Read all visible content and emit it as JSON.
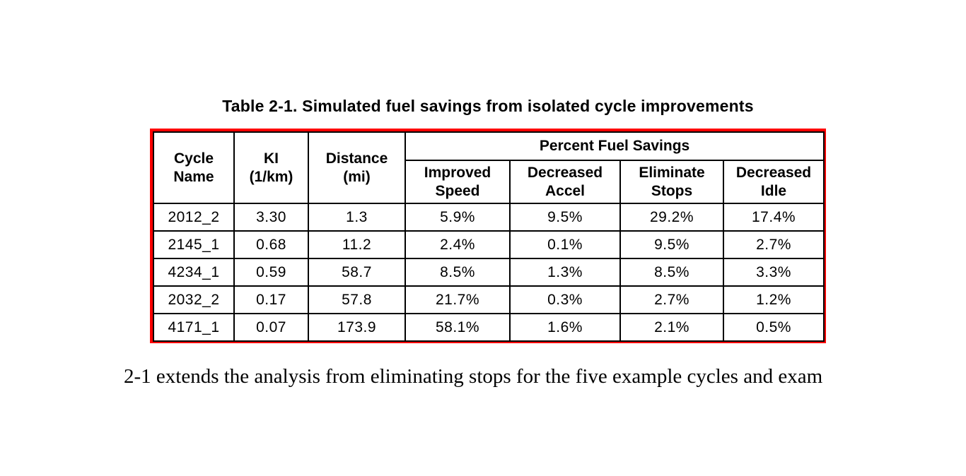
{
  "title": "Table 2-1. Simulated fuel savings from isolated cycle improvements",
  "table": {
    "border_color": "#ff0000",
    "grid_color": "#000000",
    "group_header": "Percent Fuel Savings",
    "row_headers": [
      "Cycle\nName",
      "KI\n(1/km)",
      "Distance\n(mi)"
    ],
    "sub_headers": [
      "Improved\nSpeed",
      "Decreased\nAccel",
      "Eliminate\nStops",
      "Decreased\nIdle"
    ],
    "rows": [
      [
        "2012_2",
        "3.30",
        "1.3",
        "5.9%",
        "9.5%",
        "29.2%",
        "17.4%"
      ],
      [
        "2145_1",
        "0.68",
        "11.2",
        "2.4%",
        "0.1%",
        "9.5%",
        "2.7%"
      ],
      [
        "4234_1",
        "0.59",
        "58.7",
        "8.5%",
        "1.3%",
        "8.5%",
        "3.3%"
      ],
      [
        "2032_2",
        "0.17",
        "57.8",
        "21.7%",
        "0.3%",
        "2.7%",
        "1.2%"
      ],
      [
        "4171_1",
        "0.07",
        "173.9",
        "58.1%",
        "1.6%",
        "2.1%",
        "0.5%"
      ]
    ]
  },
  "paragraph": "2-1 extends the analysis from eliminating stops for the five example cycles and exam"
}
